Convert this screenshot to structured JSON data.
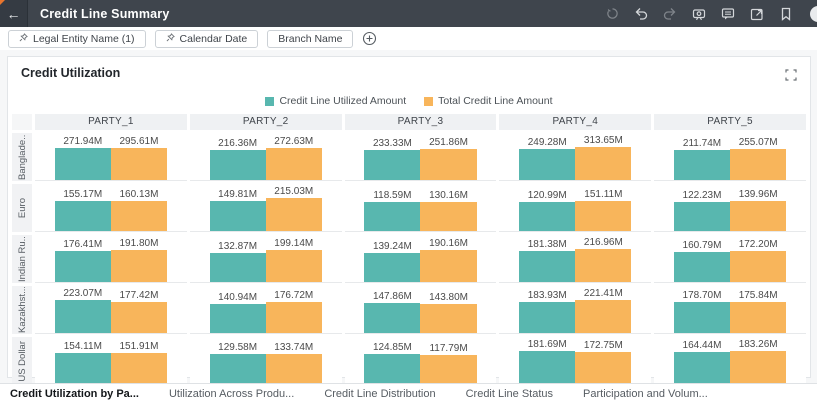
{
  "header": {
    "title": "Credit Line Summary",
    "back_label": "←"
  },
  "filters": {
    "chips": [
      {
        "label": "Legal Entity Name (1)",
        "pinned": true
      },
      {
        "label": "Calendar Date",
        "pinned": true
      },
      {
        "label": "Branch Name",
        "pinned": false
      }
    ]
  },
  "card": {
    "title": "Credit Utilization"
  },
  "chart_data": {
    "type": "bar",
    "title": "Credit Utilization",
    "legend": [
      {
        "name": "Credit Line Utilized Amount",
        "color": "#58b7af"
      },
      {
        "name": "Total Credit Line Amount",
        "color": "#f8b55b"
      }
    ],
    "columns": [
      "PARTY_1",
      "PARTY_2",
      "PARTY_3",
      "PARTY_4",
      "PARTY_5"
    ],
    "rows": [
      "Banglade...",
      "Euro",
      "Indian Ru...",
      "Kazakhst...",
      "US Dollar"
    ],
    "unit": "M",
    "value_note": "cells[row][column] = [Credit Line Utilized Amount, Total Credit Line Amount] in millions",
    "cells": [
      [
        [
          271.94,
          295.61
        ],
        [
          216.36,
          272.63
        ],
        [
          233.33,
          251.86
        ],
        [
          249.28,
          313.65
        ],
        [
          211.74,
          255.07
        ]
      ],
      [
        [
          155.17,
          160.13
        ],
        [
          149.81,
          215.03
        ],
        [
          118.59,
          130.16
        ],
        [
          120.99,
          151.11
        ],
        [
          122.23,
          139.96
        ]
      ],
      [
        [
          176.41,
          191.8
        ],
        [
          132.87,
          199.14
        ],
        [
          139.24,
          190.16
        ],
        [
          181.38,
          216.96
        ],
        [
          160.79,
          172.2
        ]
      ],
      [
        [
          223.07,
          177.42
        ],
        [
          140.94,
          176.72
        ],
        [
          147.86,
          143.8
        ],
        [
          183.93,
          221.41
        ],
        [
          178.7,
          175.84
        ]
      ],
      [
        [
          154.11,
          151.91
        ],
        [
          129.58,
          133.74
        ],
        [
          124.85,
          117.79
        ],
        [
          181.69,
          172.75
        ],
        [
          164.44,
          183.26
        ]
      ]
    ]
  },
  "tabs": [
    {
      "label": "Credit Utilization by Pa...",
      "active": true
    },
    {
      "label": "Utilization Across Produ...",
      "active": false
    },
    {
      "label": "Credit Line Distribution",
      "active": false
    },
    {
      "label": "Credit Line Status",
      "active": false
    },
    {
      "label": "Participation and Volum...",
      "active": false
    }
  ]
}
